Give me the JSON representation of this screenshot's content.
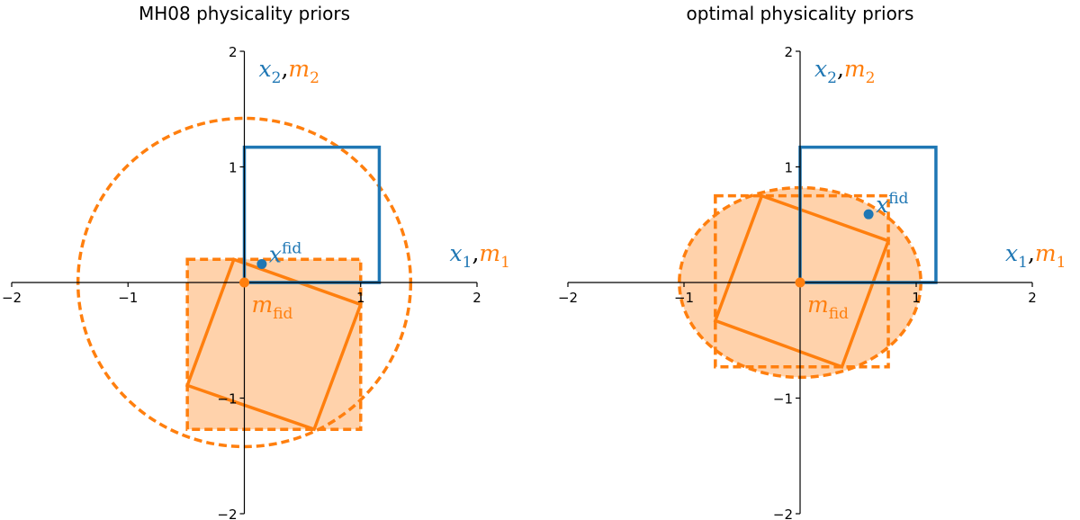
{
  "chart_data": [
    {
      "type": "geometry",
      "title": "MH08 physicality priors",
      "xlim": [
        -2,
        2
      ],
      "ylim": [
        -2,
        2
      ],
      "xticks": [
        {
          "value": -2,
          "label": "−2"
        },
        {
          "value": -1,
          "label": "−1"
        },
        1,
        2
      ],
      "yticks": [
        {
          "value": -2,
          "label": "−2"
        },
        {
          "value": -1,
          "label": "−1"
        },
        1,
        2
      ],
      "x_label": {
        "sep": ",",
        "parts": [
          {
            "base": "x",
            "sub": "1",
            "color": "#1f77b4"
          },
          {
            "base": "m",
            "sub": "1",
            "color": "#ff7f0e"
          }
        ]
      },
      "y_label": {
        "sep": ",",
        "parts": [
          {
            "base": "x",
            "sub": "2",
            "color": "#1f77b4"
          },
          {
            "base": "m",
            "sub": "2",
            "color": "#ff7f0e"
          }
        ]
      },
      "shapes": [
        {
          "kind": "polygon",
          "x": [
            -0.49,
            1.0,
            1.0,
            -0.49
          ],
          "y": [
            0.2,
            0.2,
            -1.27,
            -1.27
          ],
          "color": "#ff7f0e",
          "dashed": true,
          "filled": true
        },
        {
          "kind": "ellipse",
          "cx": 0.0,
          "cy": 0.0,
          "rx": 1.43,
          "ry": 1.42,
          "color": "#ff7f0e",
          "dashed": true,
          "filled": false
        },
        {
          "kind": "polygon",
          "x": [
            -0.09,
            1.0,
            0.6,
            -0.49
          ],
          "y": [
            0.2,
            -0.19,
            -1.27,
            -0.89
          ],
          "color": "#ff7f0e",
          "dashed": false,
          "filled": false
        },
        {
          "kind": "polygon",
          "x": [
            0,
            1.16,
            1.16,
            0
          ],
          "y": [
            0,
            0,
            1.17,
            1.17
          ],
          "color": "#1f77b4",
          "dashed": false,
          "filled": false
        }
      ],
      "points": [
        {
          "x": 0.15,
          "y": 0.16,
          "color": "#1f77b4",
          "label": {
            "base": "x",
            "sup": "fid"
          }
        },
        {
          "x": 0.0,
          "y": 0.0,
          "color": "#ff7f0e",
          "label": {
            "base": "m",
            "sub": "fid"
          }
        }
      ]
    },
    {
      "type": "geometry",
      "title": "optimal physicality priors",
      "xlim": [
        -2,
        2
      ],
      "ylim": [
        -2,
        2
      ],
      "xticks": [
        {
          "value": -2,
          "label": "−2"
        },
        {
          "value": -1,
          "label": "−1"
        },
        1,
        2
      ],
      "yticks": [
        {
          "value": -2,
          "label": "−2"
        },
        {
          "value": -1,
          "label": "−1"
        },
        1,
        2
      ],
      "x_label": {
        "sep": ",",
        "parts": [
          {
            "base": "x",
            "sub": "1",
            "color": "#1f77b4"
          },
          {
            "base": "m",
            "sub": "1",
            "color": "#ff7f0e"
          }
        ]
      },
      "y_label": {
        "sep": ",",
        "parts": [
          {
            "base": "x",
            "sub": "2",
            "color": "#1f77b4"
          },
          {
            "base": "m",
            "sub": "2",
            "color": "#ff7f0e"
          }
        ]
      },
      "shapes": [
        {
          "kind": "ellipse",
          "cx": 0.0,
          "cy": 0.0,
          "rx": 1.04,
          "ry": 0.82,
          "color": "#ff7f0e",
          "dashed": true,
          "filled": true
        },
        {
          "kind": "polygon",
          "x": [
            -0.73,
            0.76,
            0.76,
            -0.73
          ],
          "y": [
            0.75,
            0.75,
            -0.73,
            -0.73
          ],
          "color": "#ff7f0e",
          "dashed": true,
          "filled": false
        },
        {
          "kind": "polygon",
          "x": [
            -0.33,
            0.76,
            0.36,
            -0.73
          ],
          "y": [
            0.75,
            0.36,
            -0.73,
            -0.33
          ],
          "color": "#ff7f0e",
          "dashed": false,
          "filled": false
        },
        {
          "kind": "polygon",
          "x": [
            0,
            1.17,
            1.17,
            0
          ],
          "y": [
            0,
            0,
            1.17,
            1.17
          ],
          "color": "#1f77b4",
          "dashed": false,
          "filled": false
        }
      ],
      "points": [
        {
          "x": 0.59,
          "y": 0.59,
          "color": "#1f77b4",
          "label": {
            "base": "x",
            "sup": "fid"
          }
        },
        {
          "x": 0.0,
          "y": 0.0,
          "color": "#ff7f0e",
          "label": {
            "base": "m",
            "sub": "fid"
          }
        }
      ]
    }
  ]
}
